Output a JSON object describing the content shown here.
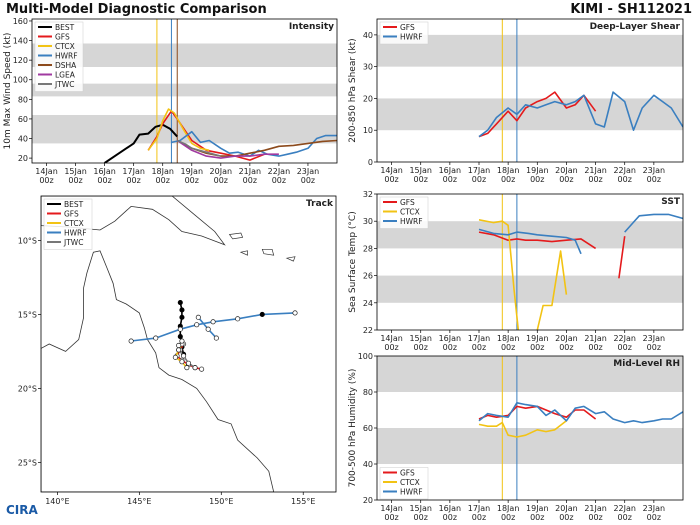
{
  "header": {
    "title": "Multi-Model Diagnostic Comparison",
    "storm": "KIMI - SH112021"
  },
  "logo_text": "CIRA",
  "colors": {
    "BEST": "#000000",
    "GFS": "#e41a1c",
    "CTCX": "#f2c314",
    "HWRF": "#3a7fc0",
    "DSHA": "#8c4a1c",
    "LGEA": "#a03aa0",
    "JTWC": "#777777",
    "band": "#d6d6d6"
  },
  "time_ticks": [
    [
      "14Jan",
      "00z"
    ],
    [
      "15Jan",
      "00z"
    ],
    [
      "16Jan",
      "00z"
    ],
    [
      "17Jan",
      "00z"
    ],
    [
      "18Jan",
      "00z"
    ],
    [
      "19Jan",
      "00z"
    ],
    [
      "20Jan",
      "00z"
    ],
    [
      "21Jan",
      "00z"
    ],
    [
      "22Jan",
      "00z"
    ],
    [
      "23Jan",
      "00z"
    ]
  ],
  "vlines": [
    {
      "t": 17.8,
      "color": "#f2c314"
    },
    {
      "t": 18.3,
      "color": "#3a7fc0"
    },
    {
      "t": 18.5,
      "color": "#8c4a1c"
    }
  ],
  "chart_data": [
    {
      "id": "intensity",
      "type": "line",
      "title": "Intensity",
      "ylabel": "10m Max Wind Speed (kt)",
      "xlim": [
        13.5,
        24.0
      ],
      "ylim": [
        15,
        162
      ],
      "yticks": [
        20,
        40,
        60,
        80,
        100,
        120,
        140,
        160
      ],
      "bands": [
        [
          35,
          64
        ],
        [
          83,
          96
        ],
        [
          113,
          137
        ]
      ],
      "legend": [
        "BEST",
        "GFS",
        "CTCX",
        "HWRF",
        "DSHA",
        "LGEA",
        "JTWC"
      ],
      "legend_position": "top-left",
      "series": [
        {
          "name": "BEST",
          "x": [
            16.0,
            16.5,
            17.0,
            17.2,
            17.5,
            17.75,
            18.0,
            18.25,
            18.5
          ],
          "y": [
            15,
            25,
            35,
            44,
            45,
            52,
            54,
            50,
            42
          ]
        },
        {
          "name": "GFS",
          "x": [
            17.5,
            17.8,
            18.0,
            18.3,
            18.5,
            19.0,
            19.5,
            20.0,
            20.5,
            21.0,
            21.5
          ],
          "y": [
            28,
            42,
            55,
            68,
            60,
            38,
            28,
            25,
            22,
            18,
            24
          ]
        },
        {
          "name": "CTCX",
          "x": [
            17.5,
            17.8,
            18.0,
            18.2,
            18.4,
            18.7,
            19.0,
            19.3,
            19.6
          ],
          "y": [
            28,
            40,
            58,
            70,
            66,
            50,
            35,
            30,
            28
          ]
        },
        {
          "name": "HWRF",
          "x": [
            18.3,
            18.6,
            19.0,
            19.3,
            19.6,
            20.0,
            20.3,
            20.6,
            21.0,
            21.3,
            21.6,
            22.0,
            22.3,
            22.6,
            23.0,
            23.3,
            23.6,
            24.0
          ],
          "y": [
            36,
            38,
            47,
            36,
            38,
            30,
            25,
            26,
            22,
            28,
            24,
            22,
            24,
            26,
            30,
            40,
            43,
            43
          ]
        },
        {
          "name": "DSHA",
          "x": [
            18.5,
            19.0,
            19.5,
            20.0,
            20.5,
            21.0,
            21.5,
            22.0,
            22.5,
            23.0,
            23.5,
            24.0
          ],
          "y": [
            38,
            30,
            25,
            22,
            22,
            25,
            28,
            32,
            33,
            35,
            37,
            38
          ]
        },
        {
          "name": "LGEA",
          "x": [
            18.5,
            19.0,
            19.5,
            20.0,
            20.5,
            21.0,
            21.5,
            22.0
          ],
          "y": [
            38,
            28,
            22,
            20,
            22,
            22,
            24,
            24
          ]
        },
        {
          "name": "JTWC",
          "x": [
            18.5,
            18.8,
            19.0,
            19.5,
            20.0
          ],
          "y": [
            38,
            34,
            30,
            26,
            22
          ]
        }
      ]
    },
    {
      "id": "shear",
      "type": "line",
      "title": "Deep-Layer Shear",
      "ylabel": "200-850 hPa Shear (kt)",
      "xlim": [
        13.5,
        24.0
      ],
      "ylim": [
        0,
        45
      ],
      "yticks": [
        0,
        10,
        20,
        30,
        40
      ],
      "bands": [
        [
          10,
          20
        ],
        [
          30,
          40
        ]
      ],
      "legend": [
        "GFS",
        "HWRF"
      ],
      "legend_position": "top-left",
      "series": [
        {
          "name": "GFS",
          "x": [
            17.0,
            17.3,
            17.6,
            18.0,
            18.3,
            18.6,
            19.0,
            19.3,
            19.6,
            20.0,
            20.3,
            20.6,
            21.0
          ],
          "y": [
            8,
            9,
            12,
            16,
            13,
            17,
            19,
            20,
            22,
            17,
            18,
            21,
            16
          ]
        },
        {
          "name": "HWRF",
          "x": [
            17.0,
            17.3,
            17.6,
            18.0,
            18.3,
            18.6,
            19.0,
            19.3,
            19.6,
            20.0,
            20.3,
            20.6,
            21.0,
            21.3,
            21.6,
            22.0,
            22.3,
            22.6,
            23.0,
            23.3,
            23.6,
            24.0
          ],
          "y": [
            8,
            10,
            14,
            17,
            15,
            18,
            17,
            18,
            19,
            18,
            19,
            21,
            12,
            11,
            22,
            19,
            10,
            17,
            21,
            19,
            17,
            11
          ]
        }
      ]
    },
    {
      "id": "sst",
      "type": "line",
      "title": "SST",
      "ylabel": "Sea Surface Temp (°C)",
      "xlim": [
        13.5,
        24.0
      ],
      "ylim": [
        22,
        32
      ],
      "yticks": [
        22,
        24,
        26,
        28,
        30,
        32
      ],
      "bands": [
        [
          24,
          26
        ],
        [
          28,
          30
        ]
      ],
      "legend": [
        "GFS",
        "CTCX",
        "HWRF"
      ],
      "legend_position": "top-left",
      "series": [
        {
          "name": "GFS",
          "x": [
            17.0,
            17.5,
            18.0,
            18.3,
            18.6,
            19.0,
            19.5,
            20.0,
            20.5,
            21.0,
            null,
            21.8,
            22.0
          ],
          "y": [
            29.2,
            29.0,
            28.6,
            28.7,
            28.6,
            28.6,
            28.5,
            28.6,
            28.7,
            28.0,
            null,
            25.8,
            28.9
          ]
        },
        {
          "name": "CTCX",
          "x": [
            17.0,
            17.5,
            17.8,
            18.0,
            18.2,
            18.35,
            null,
            19.0,
            19.2,
            19.5,
            19.8,
            20.0
          ],
          "y": [
            30.1,
            29.9,
            30.0,
            29.7,
            25.0,
            22.0,
            null,
            22.0,
            23.8,
            23.8,
            27.8,
            24.6
          ]
        },
        {
          "name": "HWRF",
          "x": [
            17.0,
            17.5,
            18.0,
            18.3,
            18.7,
            19.0,
            19.5,
            20.0,
            20.3,
            20.5,
            null,
            22.0,
            22.5,
            23.0,
            23.5,
            24.0
          ],
          "y": [
            29.4,
            29.1,
            29.0,
            29.2,
            29.1,
            29.0,
            28.9,
            28.8,
            28.6,
            27.6,
            null,
            29.2,
            30.4,
            30.5,
            30.5,
            30.2
          ]
        }
      ]
    },
    {
      "id": "rh",
      "type": "line",
      "title": "Mid-Level RH",
      "ylabel": "700-500 hPa Humidity (%)",
      "xlim": [
        13.5,
        24.0
      ],
      "ylim": [
        20,
        100
      ],
      "yticks": [
        20,
        40,
        60,
        80,
        100
      ],
      "bands": [
        [
          40,
          60
        ],
        [
          80,
          100
        ]
      ],
      "legend": [
        "GFS",
        "CTCX",
        "HWRF"
      ],
      "legend_position": "bottom-left",
      "series": [
        {
          "name": "GFS",
          "x": [
            17.0,
            17.3,
            17.6,
            18.0,
            18.3,
            18.6,
            19.0,
            19.3,
            19.6,
            20.0,
            20.3,
            20.6,
            21.0
          ],
          "y": [
            65,
            67,
            66,
            67,
            72,
            71,
            72,
            70,
            68,
            66,
            70,
            70,
            65
          ]
        },
        {
          "name": "CTCX",
          "x": [
            17.0,
            17.3,
            17.6,
            17.8,
            18.0,
            18.3,
            18.6,
            19.0,
            19.3,
            19.6,
            20.0
          ],
          "y": [
            62,
            61,
            61,
            63,
            56,
            55,
            56,
            59,
            58,
            59,
            64
          ]
        },
        {
          "name": "HWRF",
          "x": [
            17.0,
            17.3,
            17.6,
            18.0,
            18.3,
            18.6,
            19.0,
            19.3,
            19.6,
            20.0,
            20.3,
            20.6,
            21.0,
            21.3,
            21.6,
            22.0,
            22.3,
            22.6,
            23.0,
            23.3,
            23.6,
            24.0
          ],
          "y": [
            64,
            68,
            67,
            66,
            74,
            73,
            72,
            67,
            70,
            64,
            71,
            72,
            68,
            69,
            65,
            63,
            64,
            63,
            64,
            65,
            65,
            69
          ]
        }
      ]
    },
    {
      "id": "track",
      "type": "scatter",
      "title": "Track",
      "xlim": [
        139,
        157
      ],
      "ylim": [
        -27,
        -7
      ],
      "xticks": [
        140,
        145,
        150,
        155
      ],
      "xtick_labels": [
        "140°E",
        "145°E",
        "150°E",
        "155°E"
      ],
      "yticks": [
        -10,
        -15,
        -20,
        -25
      ],
      "ytick_labels": [
        "10°S",
        "15°S",
        "20°S",
        "25°S"
      ],
      "legend": [
        "BEST",
        "GFS",
        "CTCX",
        "HWRF",
        "JTWC"
      ],
      "legend_position": "top-left",
      "series": [
        {
          "name": "BEST",
          "lon": [
            147.5,
            147.6,
            147.6,
            147.5,
            147.5,
            147.6,
            147.7
          ],
          "lat": [
            -14.2,
            -14.7,
            -15.2,
            -15.8,
            -16.5,
            -17.2,
            -17.7
          ]
        },
        {
          "name": "GFS",
          "lon": [
            147.7,
            147.5,
            147.3,
            147.6,
            148.0,
            148.4,
            148.8
          ],
          "lat": [
            -17.0,
            -17.4,
            -17.8,
            -18.1,
            -18.4,
            -18.6,
            -18.7
          ]
        },
        {
          "name": "CTCX",
          "lon": [
            147.6,
            147.4,
            147.2,
            147.6,
            147.9
          ],
          "lat": [
            -17.0,
            -17.4,
            -17.9,
            -18.2,
            -18.6
          ]
        },
        {
          "name": "HWRF",
          "lon": [
            154.5,
            152.5,
            151.0,
            149.5,
            148.5,
            147.5,
            146.0,
            144.5
          ],
          "lat": [
            -14.9,
            -15.0,
            -15.3,
            -15.5,
            -15.7,
            -16.0,
            -16.6,
            -16.8
          ]
        },
        {
          "name": "JTWC",
          "lon": [
            147.6,
            147.4,
            147.4,
            147.7,
            148.0,
            148.4
          ],
          "lat": [
            -16.8,
            -17.1,
            -17.4,
            -17.8,
            -18.3,
            -18.6
          ]
        },
        {
          "name": "HWRF",
          "lon": [
            148.6,
            149.2,
            149.7
          ],
          "lat": [
            -15.2,
            -16.0,
            -16.6
          ]
        }
      ]
    }
  ]
}
